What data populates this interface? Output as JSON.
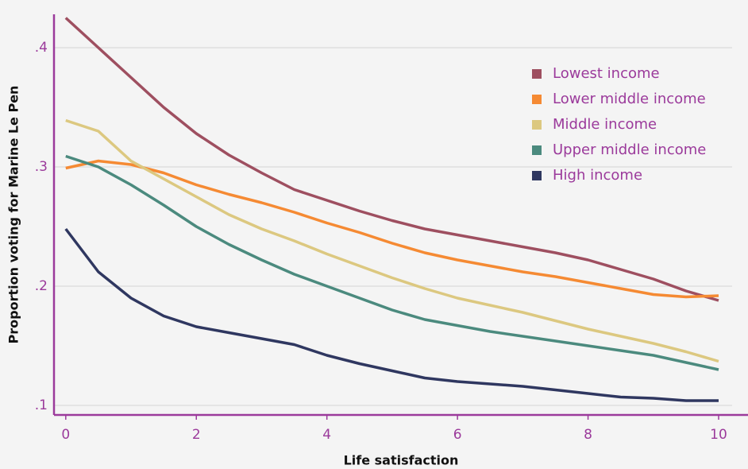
{
  "chart_data": {
    "type": "line",
    "xlabel": "Life satisfaction",
    "ylabel": "Proportion voting for Marine Le Pen",
    "x": [
      0,
      0.5,
      1,
      1.5,
      2,
      2.5,
      3,
      3.5,
      4,
      4.5,
      5,
      5.5,
      6,
      6.5,
      7,
      7.5,
      8,
      8.5,
      9,
      9.5,
      10
    ],
    "series": [
      {
        "name": "Lowest income",
        "color": "#9e4f60",
        "values": [
          0.425,
          0.4,
          0.375,
          0.35,
          0.328,
          0.31,
          0.295,
          0.281,
          0.272,
          0.263,
          0.255,
          0.248,
          0.243,
          0.238,
          0.233,
          0.228,
          0.222,
          0.214,
          0.206,
          0.196,
          0.188
        ]
      },
      {
        "name": "Lower middle income",
        "color": "#f58a33",
        "values": [
          0.299,
          0.305,
          0.302,
          0.295,
          0.285,
          0.277,
          0.27,
          0.262,
          0.253,
          0.245,
          0.236,
          0.228,
          0.222,
          0.217,
          0.212,
          0.208,
          0.203,
          0.198,
          0.193,
          0.191,
          0.192
        ]
      },
      {
        "name": "Middle income",
        "color": "#dcc880",
        "values": [
          0.339,
          0.33,
          0.305,
          0.29,
          0.275,
          0.26,
          0.248,
          0.238,
          0.227,
          0.217,
          0.207,
          0.198,
          0.19,
          0.184,
          0.178,
          0.171,
          0.164,
          0.158,
          0.152,
          0.145,
          0.137
        ]
      },
      {
        "name": "Upper middle income",
        "color": "#4b8a7e",
        "values": [
          0.309,
          0.3,
          0.285,
          0.268,
          0.25,
          0.235,
          0.222,
          0.21,
          0.2,
          0.19,
          0.18,
          0.172,
          0.167,
          0.162,
          0.158,
          0.154,
          0.15,
          0.146,
          0.142,
          0.136,
          0.13
        ]
      },
      {
        "name": "High income",
        "color": "#2f3760",
        "values": [
          0.248,
          0.212,
          0.19,
          0.175,
          0.166,
          0.161,
          0.156,
          0.151,
          0.142,
          0.135,
          0.129,
          0.123,
          0.12,
          0.118,
          0.116,
          0.113,
          0.11,
          0.107,
          0.106,
          0.104,
          0.104
        ]
      }
    ],
    "xlim": [
      -0.18,
      10.45
    ],
    "ylim": [
      0.092,
      0.428
    ],
    "xticks": [
      0,
      2,
      4,
      6,
      8,
      10
    ],
    "yticks": [
      {
        "value": 0.1,
        "label": ".1"
      },
      {
        "value": 0.2,
        "label": ".2"
      },
      {
        "value": 0.3,
        "label": ".3"
      },
      {
        "value": 0.4,
        "label": ".4"
      }
    ],
    "grid": true,
    "legend": "upper right",
    "axis_color": "#9b3a9b"
  }
}
